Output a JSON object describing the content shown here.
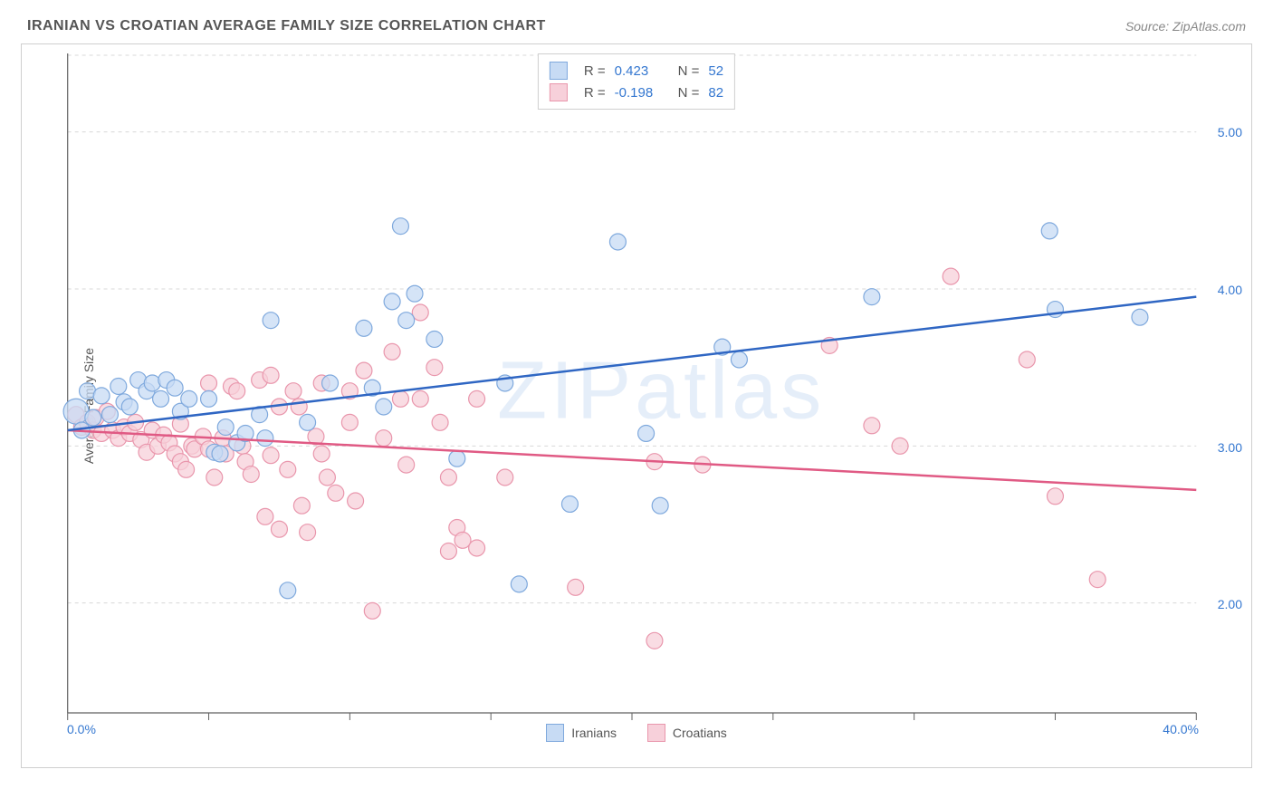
{
  "title": "IRANIAN VS CROATIAN AVERAGE FAMILY SIZE CORRELATION CHART",
  "source": "Source: ZipAtlas.com",
  "watermark": "ZIPatlas",
  "ylabel": "Average Family Size",
  "xlim": [
    0,
    40
  ],
  "ylim": [
    1.3,
    5.5
  ],
  "x_ticks": [
    0,
    5,
    10,
    15,
    20,
    25,
    30,
    35,
    40
  ],
  "x_tick_labels_shown": {
    "0": "0.0%",
    "40": "40.0%"
  },
  "y_ticks": [
    2.0,
    3.0,
    4.0,
    5.0
  ],
  "y_tick_labels": [
    "2.00",
    "3.00",
    "4.00",
    "5.00"
  ],
  "grid_color": "#d8d8d8",
  "axis_color": "#606060",
  "tick_label_color": "#3477d0",
  "series": {
    "iranians": {
      "label": "Iranians",
      "fill": "#c7dbf4",
      "stroke": "#7fa9dd",
      "line_stroke": "#2f66c3",
      "marker_radius": 9,
      "marker_opacity": 0.75,
      "R": "0.423",
      "N": "52",
      "trend": {
        "x1": 0,
        "y1": 3.1,
        "x2": 40,
        "y2": 3.95
      },
      "points": [
        [
          0.3,
          3.22,
          14
        ],
        [
          0.5,
          3.1
        ],
        [
          0.7,
          3.35
        ],
        [
          0.9,
          3.18
        ],
        [
          1.2,
          3.32
        ],
        [
          1.5,
          3.2
        ],
        [
          1.8,
          3.38
        ],
        [
          2.0,
          3.28
        ],
        [
          2.2,
          3.25
        ],
        [
          2.5,
          3.42
        ],
        [
          2.8,
          3.35
        ],
        [
          3.0,
          3.4
        ],
        [
          3.3,
          3.3
        ],
        [
          3.5,
          3.42
        ],
        [
          3.8,
          3.37
        ],
        [
          4.0,
          3.22
        ],
        [
          4.3,
          3.3
        ],
        [
          5.0,
          3.3
        ],
        [
          5.2,
          2.96
        ],
        [
          5.4,
          2.95
        ],
        [
          5.6,
          3.12
        ],
        [
          6.0,
          3.02
        ],
        [
          6.3,
          3.08
        ],
        [
          6.8,
          3.2
        ],
        [
          7.0,
          3.05
        ],
        [
          7.2,
          3.8
        ],
        [
          7.8,
          2.08
        ],
        [
          8.5,
          3.15
        ],
        [
          9.3,
          3.4
        ],
        [
          10.5,
          3.75
        ],
        [
          10.8,
          3.37
        ],
        [
          11.2,
          3.25
        ],
        [
          11.5,
          3.92
        ],
        [
          11.8,
          4.4
        ],
        [
          12.0,
          3.8
        ],
        [
          12.3,
          3.97
        ],
        [
          13.0,
          3.68
        ],
        [
          13.8,
          2.92
        ],
        [
          15.5,
          3.4
        ],
        [
          16.0,
          2.12
        ],
        [
          17.8,
          2.63
        ],
        [
          19.5,
          4.3
        ],
        [
          20.5,
          3.08
        ],
        [
          21.0,
          2.62
        ],
        [
          23.2,
          3.63
        ],
        [
          23.8,
          3.55
        ],
        [
          28.5,
          3.95
        ],
        [
          34.8,
          4.37
        ],
        [
          35.0,
          3.87
        ],
        [
          38.0,
          3.82
        ]
      ]
    },
    "croatians": {
      "label": "Croatians",
      "fill": "#f7d0da",
      "stroke": "#e996ac",
      "line_stroke": "#e05a84",
      "marker_radius": 9,
      "marker_opacity": 0.75,
      "R": "-0.198",
      "N": "82",
      "trend": {
        "x1": 0,
        "y1": 3.1,
        "x2": 40,
        "y2": 2.72
      },
      "points": [
        [
          0.3,
          3.2
        ],
        [
          0.5,
          3.12
        ],
        [
          0.7,
          3.15
        ],
        [
          0.9,
          3.1
        ],
        [
          1.0,
          3.18
        ],
        [
          1.2,
          3.08
        ],
        [
          1.4,
          3.22
        ],
        [
          1.6,
          3.1
        ],
        [
          1.8,
          3.05
        ],
        [
          2.0,
          3.12
        ],
        [
          2.2,
          3.08
        ],
        [
          2.4,
          3.15
        ],
        [
          2.6,
          3.04
        ],
        [
          2.8,
          2.96
        ],
        [
          3.0,
          3.1
        ],
        [
          3.2,
          3.0
        ],
        [
          3.4,
          3.07
        ],
        [
          3.6,
          3.02
        ],
        [
          3.8,
          2.95
        ],
        [
          4.0,
          2.9
        ],
        [
          4.0,
          3.14
        ],
        [
          4.2,
          2.85
        ],
        [
          4.4,
          3.0
        ],
        [
          4.5,
          2.98
        ],
        [
          4.8,
          3.06
        ],
        [
          5.0,
          2.98
        ],
        [
          5.0,
          3.4
        ],
        [
          5.2,
          2.8
        ],
        [
          5.5,
          3.05
        ],
        [
          5.6,
          2.95
        ],
        [
          5.8,
          3.38
        ],
        [
          6.0,
          3.35
        ],
        [
          6.2,
          3.0
        ],
        [
          6.3,
          2.9
        ],
        [
          6.5,
          2.82
        ],
        [
          6.8,
          3.42
        ],
        [
          7.0,
          2.55
        ],
        [
          7.2,
          2.94
        ],
        [
          7.2,
          3.45
        ],
        [
          7.5,
          3.25
        ],
        [
          7.5,
          2.47
        ],
        [
          7.8,
          2.85
        ],
        [
          8.0,
          3.35
        ],
        [
          8.2,
          3.25
        ],
        [
          8.3,
          2.62
        ],
        [
          8.5,
          2.45
        ],
        [
          8.8,
          3.06
        ],
        [
          9.0,
          2.95
        ],
        [
          9.0,
          3.4
        ],
        [
          9.2,
          2.8
        ],
        [
          9.5,
          2.7
        ],
        [
          10.0,
          3.15
        ],
        [
          10.0,
          3.35
        ],
        [
          10.2,
          2.65
        ],
        [
          10.5,
          3.48
        ],
        [
          10.8,
          1.95
        ],
        [
          11.2,
          3.05
        ],
        [
          11.5,
          3.6
        ],
        [
          11.8,
          3.3
        ],
        [
          12.0,
          2.88
        ],
        [
          12.5,
          3.85
        ],
        [
          12.5,
          3.3
        ],
        [
          13.0,
          3.5
        ],
        [
          13.2,
          3.15
        ],
        [
          13.5,
          2.8
        ],
        [
          13.5,
          2.33
        ],
        [
          13.8,
          2.48
        ],
        [
          14.0,
          2.4
        ],
        [
          14.5,
          2.35
        ],
        [
          14.5,
          3.3
        ],
        [
          15.5,
          2.8
        ],
        [
          18.0,
          2.1
        ],
        [
          20.8,
          2.9
        ],
        [
          20.8,
          1.76
        ],
        [
          22.5,
          2.88
        ],
        [
          27.0,
          3.64
        ],
        [
          28.5,
          3.13
        ],
        [
          29.5,
          3.0
        ],
        [
          31.3,
          4.08
        ],
        [
          34.0,
          3.55
        ],
        [
          35.0,
          2.68
        ],
        [
          36.5,
          2.15
        ]
      ]
    }
  }
}
